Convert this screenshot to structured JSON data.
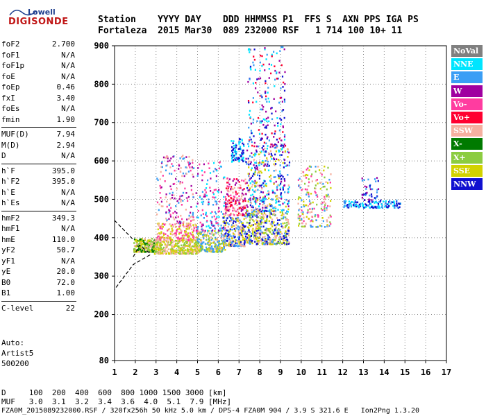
{
  "logo": {
    "brand": "Lowell",
    "name": "DIGISONDE"
  },
  "header": {
    "labels": "Station    YYYY DAY    DDD HHMMSS P1  FFS S  AXN PPS IGA PS",
    "values": "Fortaleza  2015 Mar30  089 232000 RSF   1 714 100 10+ 11"
  },
  "params": [
    {
      "label": "foF2",
      "value": "2.700"
    },
    {
      "label": "foF1",
      "value": "N/A"
    },
    {
      "label": "foF1p",
      "value": "N/A"
    },
    {
      "label": "foE",
      "value": "N/A"
    },
    {
      "label": "foEp",
      "value": "0.46"
    },
    {
      "label": "fxI",
      "value": "3.40"
    },
    {
      "label": "foEs",
      "value": "N/A"
    },
    {
      "label": "fmin",
      "value": "1.90"
    },
    {
      "label": "MUF(D)",
      "value": "7.94"
    },
    {
      "label": "M(D)",
      "value": "2.94"
    },
    {
      "label": "D",
      "value": "N/A"
    },
    {
      "label": "h`F",
      "value": "395.0"
    },
    {
      "label": "h`F2",
      "value": "395.0"
    },
    {
      "label": "h`E",
      "value": "N/A"
    },
    {
      "label": "h`Es",
      "value": "N/A"
    },
    {
      "label": "hmF2",
      "value": "349.3"
    },
    {
      "label": "hmF1",
      "value": "N/A"
    },
    {
      "label": "hmE",
      "value": "110.0"
    },
    {
      "label": "yF2",
      "value": "50.7"
    },
    {
      "label": "yF1",
      "value": "N/A"
    },
    {
      "label": "yE",
      "value": "20.0"
    },
    {
      "label": "B0",
      "value": "72.0"
    },
    {
      "label": "B1",
      "value": "1.00"
    },
    {
      "label": "C-level",
      "value": "22"
    }
  ],
  "auto": {
    "title": "Auto:",
    "software": "Artist5",
    "version": "500200"
  },
  "footer": {
    "d_line": "D     100  200  400  600  800 1000 1500 3000 [km]",
    "muf_line": "MUF   3.0  3.1  3.2  3.4  3.6  4.0  5.1  7.9 [MHz]",
    "file_line": "FZA0M_2015089232000.RSF / 320fx256h 50 kHz 5.0 km / DPS-4 FZA0M 904 / 3.9 S 321.6 E   Ion2Png 1.3.20"
  },
  "legend": [
    {
      "label": "NoVal",
      "color": "#808080"
    },
    {
      "label": "NNE",
      "color": "#00e5ff"
    },
    {
      "label": "E",
      "color": "#3a9ef5"
    },
    {
      "label": "W",
      "color": "#a000a0"
    },
    {
      "label": "Vo-",
      "color": "#ff3ca0"
    },
    {
      "label": "Vo+",
      "color": "#ff0030"
    },
    {
      "label": "SSW",
      "color": "#f5b0a0"
    },
    {
      "label": "X-",
      "color": "#007a00"
    },
    {
      "label": "X+",
      "color": "#8ccc40"
    },
    {
      "label": "SSE",
      "color": "#d2d200"
    },
    {
      "label": "NNW",
      "color": "#1010d0"
    }
  ],
  "chart_data": {
    "type": "scatter",
    "xlim": [
      1,
      17
    ],
    "ylim": [
      80,
      900
    ],
    "x_ticks": [
      "1",
      "2",
      "3",
      "4",
      "5",
      "6",
      "7",
      "8",
      "9",
      "10",
      "11",
      "12",
      "13",
      "14",
      "15",
      "16",
      "17"
    ],
    "y_ticks": [
      "80",
      "200",
      "300",
      "400",
      "500",
      "600",
      "700",
      "800",
      "900"
    ],
    "grid": true,
    "clusters": [
      {
        "x": [
          1.9,
          3.0
        ],
        "y": [
          365,
          400
        ],
        "colors": [
          "#d2d200",
          "#8ccc40",
          "#007a00",
          "#f5b0a0"
        ],
        "n": 260
      },
      {
        "x": [
          2.9,
          5.0
        ],
        "y": [
          360,
          395
        ],
        "colors": [
          "#d2d200",
          "#8ccc40",
          "#f5b0a0"
        ],
        "n": 320
      },
      {
        "x": [
          3.0,
          5.0
        ],
        "y": [
          395,
          440
        ],
        "colors": [
          "#f5b0a0",
          "#ff3ca0",
          "#d2d200"
        ],
        "n": 200
      },
      {
        "x": [
          3.0,
          4.8
        ],
        "y": [
          440,
          620
        ],
        "colors": [
          "#a000a0",
          "#ff3ca0",
          "#f5b0a0",
          "#3a9ef5"
        ],
        "n": 170
      },
      {
        "x": [
          4.9,
          6.3
        ],
        "y": [
          365,
          420
        ],
        "colors": [
          "#d2d200",
          "#8ccc40",
          "#f5b0a0",
          "#3a9ef5"
        ],
        "n": 240
      },
      {
        "x": [
          4.9,
          6.3
        ],
        "y": [
          420,
          600
        ],
        "colors": [
          "#ff3ca0",
          "#a000a0",
          "#3a9ef5",
          "#00e5ff"
        ],
        "n": 150
      },
      {
        "x": [
          6.2,
          7.3
        ],
        "y": [
          380,
          460
        ],
        "colors": [
          "#d2d200",
          "#3a9ef5",
          "#1010d0",
          "#f5b0a0"
        ],
        "n": 230
      },
      {
        "x": [
          6.3,
          7.3
        ],
        "y": [
          460,
          560
        ],
        "colors": [
          "#a000a0",
          "#ff3ca0",
          "#f5b0a0",
          "#ff0030"
        ],
        "n": 160
      },
      {
        "x": [
          6.6,
          7.2
        ],
        "y": [
          600,
          660
        ],
        "colors": [
          "#1010d0",
          "#00e5ff"
        ],
        "n": 80
      },
      {
        "x": [
          7.3,
          9.4
        ],
        "y": [
          385,
          470
        ],
        "colors": [
          "#d2d200",
          "#1010d0",
          "#3a9ef5",
          "#8ccc40",
          "#f5b0a0"
        ],
        "n": 420
      },
      {
        "x": [
          7.3,
          9.4
        ],
        "y": [
          470,
          640
        ],
        "colors": [
          "#f5b0a0",
          "#00e5ff",
          "#3a9ef5",
          "#a000a0",
          "#1010d0",
          "#d2d200"
        ],
        "n": 380
      },
      {
        "x": [
          7.4,
          9.2
        ],
        "y": [
          640,
          900
        ],
        "colors": [
          "#1010d0",
          "#00e5ff",
          "#a000a0",
          "#3a9ef5",
          "#ff0030"
        ],
        "n": 200
      },
      {
        "x": [
          9.8,
          11.4
        ],
        "y": [
          430,
          590
        ],
        "colors": [
          "#f5b0a0",
          "#8ccc40",
          "#d2d200",
          "#3a9ef5",
          "#ff3ca0"
        ],
        "n": 190
      },
      {
        "x": [
          12.0,
          14.8
        ],
        "y": [
          480,
          500
        ],
        "colors": [
          "#3a9ef5",
          "#00e5ff",
          "#1010d0"
        ],
        "n": 140
      },
      {
        "x": [
          12.9,
          13.7
        ],
        "y": [
          500,
          560
        ],
        "colors": [
          "#1010d0",
          "#3a9ef5",
          "#a000a0"
        ],
        "n": 40
      }
    ],
    "scaled_profile": [
      [
        1.9,
        350
      ],
      [
        2.2,
        380
      ],
      [
        2.7,
        360
      ],
      [
        2.7,
        355
      ],
      [
        1.9,
        330
      ],
      [
        1.2,
        280
      ],
      [
        1.0,
        265
      ]
    ],
    "upper_dashed": [
      [
        1.0,
        445
      ],
      [
        1.9,
        395
      ]
    ]
  }
}
